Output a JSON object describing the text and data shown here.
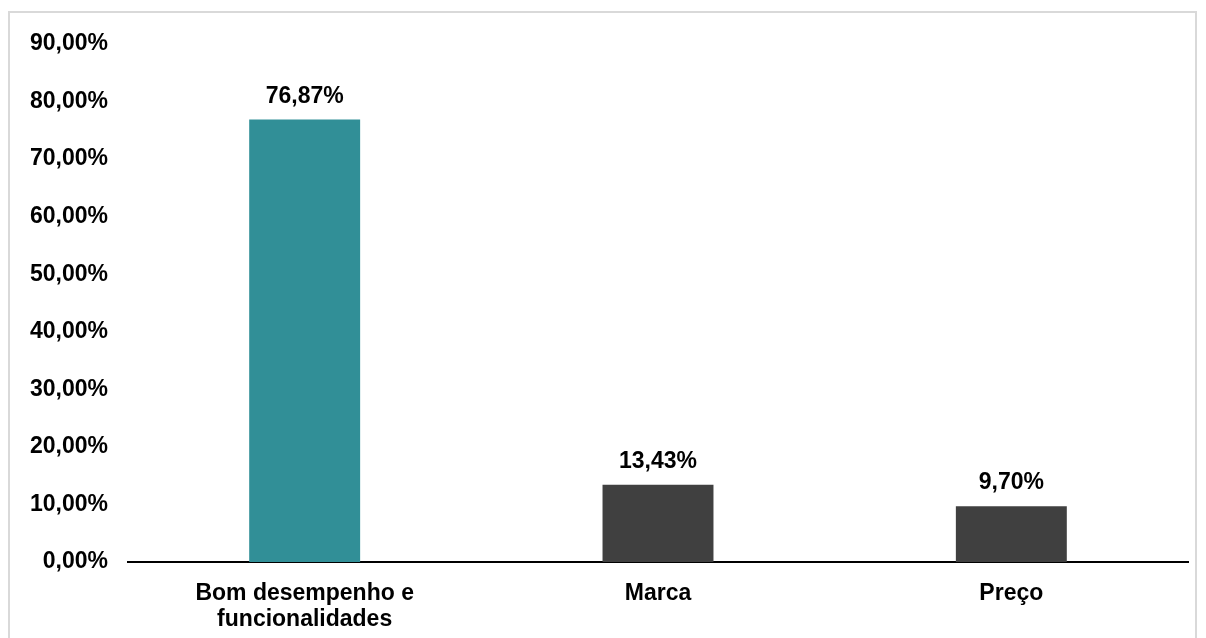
{
  "chart_data": {
    "type": "bar",
    "categories": [
      "Bom desempenho e funcionalidades",
      "Marca",
      "Preço"
    ],
    "values": [
      76.87,
      13.43,
      9.7
    ],
    "colors": [
      "#318f97",
      "#404040",
      "#404040"
    ],
    "value_labels": [
      "76,87%",
      "13,43%",
      "9,70%"
    ],
    "ylim": [
      0,
      90
    ],
    "yticks": [
      {
        "value": 0,
        "label": "0,00%"
      },
      {
        "value": 10,
        "label": "10,00%"
      },
      {
        "value": 20,
        "label": "20,00%"
      },
      {
        "value": 30,
        "label": "30,00%"
      },
      {
        "value": 40,
        "label": "40,00%"
      },
      {
        "value": 50,
        "label": "50,00%"
      },
      {
        "value": 60,
        "label": "60,00%"
      },
      {
        "value": 70,
        "label": "70,00%"
      },
      {
        "value": 80,
        "label": "80,00%"
      },
      {
        "value": 90,
        "label": "90,00%"
      }
    ],
    "grid": false,
    "legend": false
  }
}
